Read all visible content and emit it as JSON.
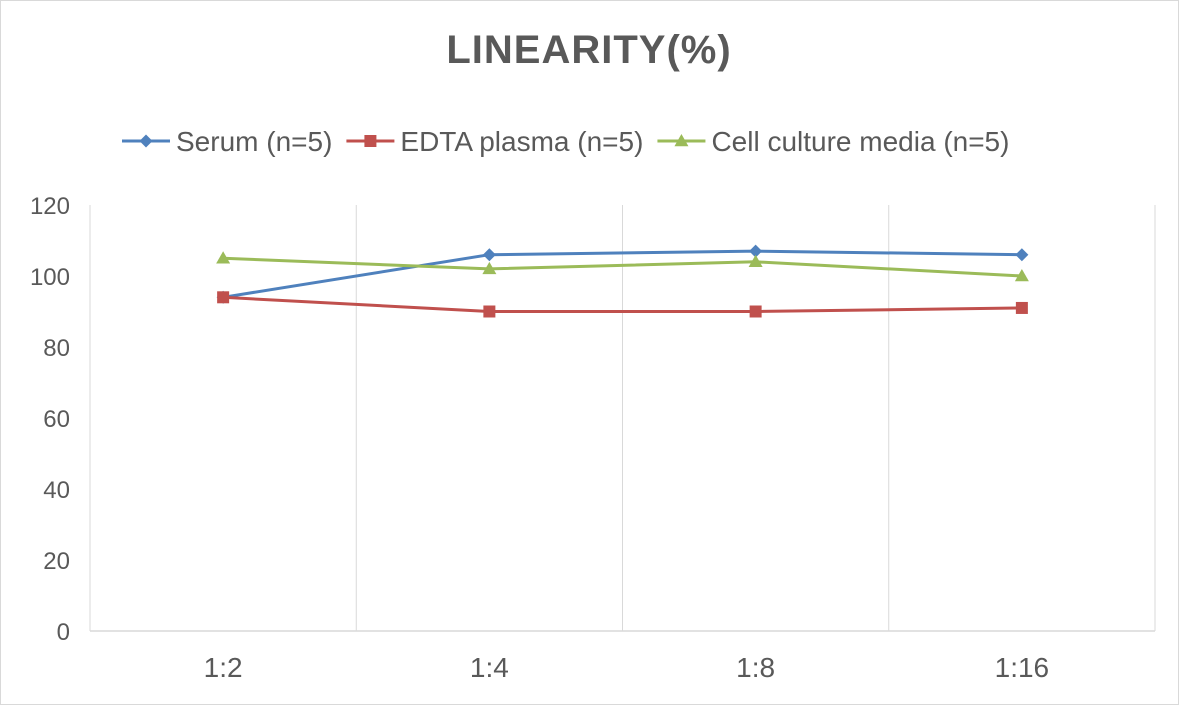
{
  "chart_data": {
    "type": "line",
    "title": "LINEARITY(%)",
    "xlabel": "",
    "ylabel": "",
    "categories": [
      "1:2",
      "1:4",
      "1:8",
      "1:16"
    ],
    "ylim": [
      0,
      120
    ],
    "yticks": [
      0,
      20,
      40,
      60,
      80,
      100,
      120
    ],
    "grid": "vertical",
    "legend_position": "top",
    "series": [
      {
        "name": "Serum (n=5)",
        "values": [
          94,
          106,
          107,
          106
        ],
        "color": "#4f81bd",
        "marker": "diamond"
      },
      {
        "name": "EDTA plasma (n=5)",
        "values": [
          94,
          90,
          90,
          91
        ],
        "color": "#c0504d",
        "marker": "square"
      },
      {
        "name": "Cell culture media (n=5)",
        "values": [
          105,
          102,
          104,
          100
        ],
        "color": "#9bbb59",
        "marker": "triangle"
      }
    ]
  }
}
